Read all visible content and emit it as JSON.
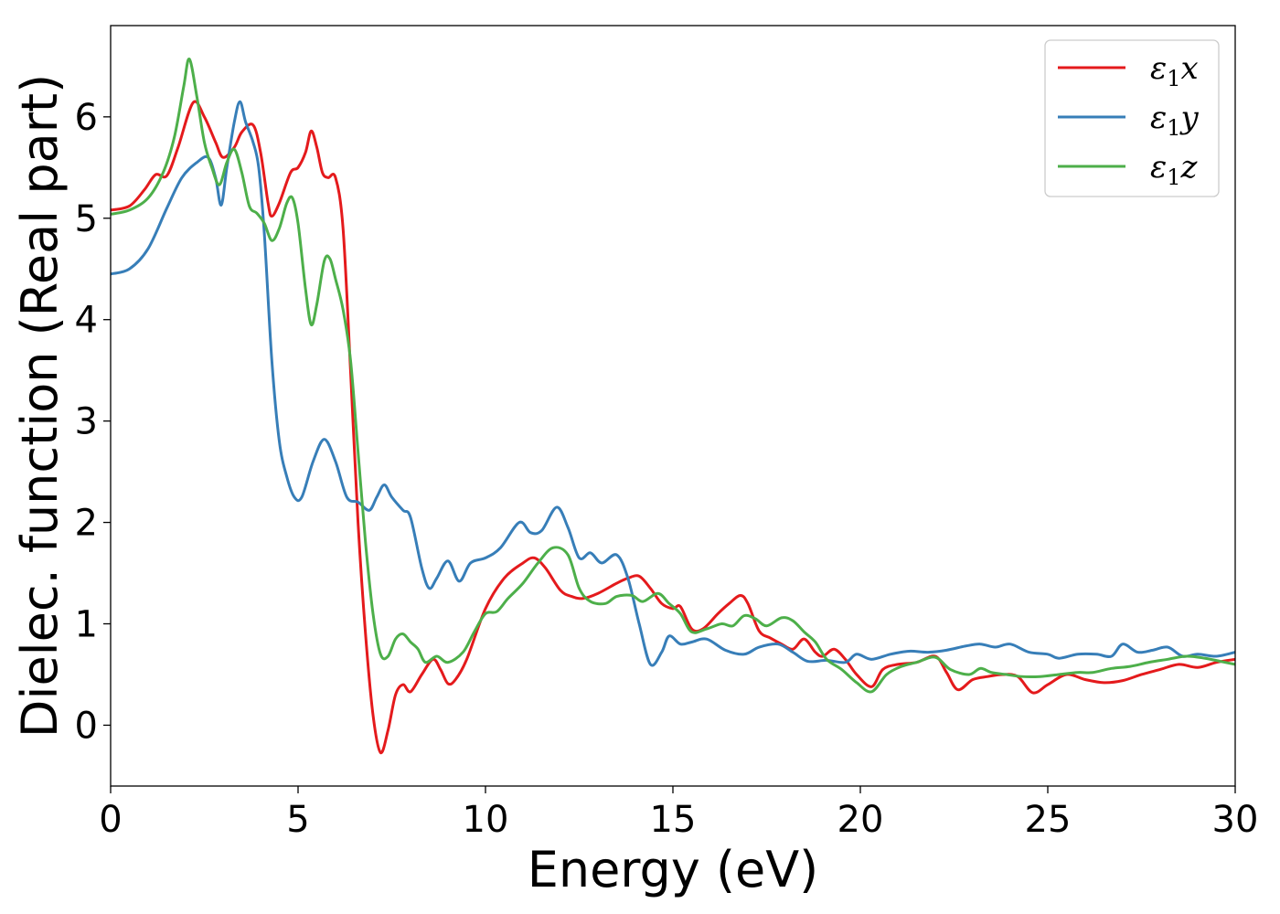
{
  "chart_data": {
    "type": "line",
    "title": "",
    "xlabel": "Energy (eV)",
    "ylabel": "Dielec. function (Real part)",
    "xlim": [
      0,
      30
    ],
    "ylim": [
      -0.6,
      6.9
    ],
    "xticks": [
      0,
      5,
      10,
      15,
      20,
      25,
      30
    ],
    "yticks": [
      0,
      1,
      2,
      3,
      4,
      5,
      6
    ],
    "grid": false,
    "legend_position": "top-right",
    "series": [
      {
        "name": "ε1x",
        "legend_main": "ε",
        "legend_sub": "1",
        "legend_tail": "x",
        "color": "#e41a1c",
        "points": [
          [
            0,
            5.08
          ],
          [
            0.5,
            5.12
          ],
          [
            0.9,
            5.28
          ],
          [
            1.2,
            5.43
          ],
          [
            1.5,
            5.42
          ],
          [
            1.8,
            5.7
          ],
          [
            2.2,
            6.14
          ],
          [
            2.5,
            6.0
          ],
          [
            2.8,
            5.75
          ],
          [
            3.0,
            5.6
          ],
          [
            3.3,
            5.7
          ],
          [
            3.5,
            5.85
          ],
          [
            3.8,
            5.92
          ],
          [
            4.0,
            5.65
          ],
          [
            4.2,
            5.15
          ],
          [
            4.3,
            5.02
          ],
          [
            4.5,
            5.15
          ],
          [
            4.8,
            5.45
          ],
          [
            5.0,
            5.5
          ],
          [
            5.2,
            5.65
          ],
          [
            5.35,
            5.86
          ],
          [
            5.5,
            5.7
          ],
          [
            5.65,
            5.45
          ],
          [
            5.8,
            5.4
          ],
          [
            6.0,
            5.4
          ],
          [
            6.2,
            4.9
          ],
          [
            6.4,
            3.5
          ],
          [
            6.6,
            2.0
          ],
          [
            6.8,
            0.9
          ],
          [
            7.0,
            0.1
          ],
          [
            7.2,
            -0.27
          ],
          [
            7.4,
            -0.05
          ],
          [
            7.6,
            0.3
          ],
          [
            7.8,
            0.4
          ],
          [
            8.0,
            0.33
          ],
          [
            8.3,
            0.5
          ],
          [
            8.6,
            0.65
          ],
          [
            8.8,
            0.55
          ],
          [
            9.0,
            0.41
          ],
          [
            9.2,
            0.45
          ],
          [
            9.5,
            0.65
          ],
          [
            10.0,
            1.15
          ],
          [
            10.5,
            1.45
          ],
          [
            11.0,
            1.6
          ],
          [
            11.3,
            1.65
          ],
          [
            11.6,
            1.55
          ],
          [
            12.0,
            1.33
          ],
          [
            12.3,
            1.27
          ],
          [
            12.6,
            1.25
          ],
          [
            13.0,
            1.3
          ],
          [
            13.5,
            1.4
          ],
          [
            13.8,
            1.45
          ],
          [
            14.1,
            1.47
          ],
          [
            14.4,
            1.35
          ],
          [
            14.7,
            1.2
          ],
          [
            15.0,
            1.15
          ],
          [
            15.2,
            1.17
          ],
          [
            15.5,
            0.95
          ],
          [
            15.8,
            0.95
          ],
          [
            16.2,
            1.1
          ],
          [
            16.5,
            1.2
          ],
          [
            16.8,
            1.28
          ],
          [
            17.0,
            1.2
          ],
          [
            17.3,
            0.93
          ],
          [
            17.6,
            0.86
          ],
          [
            17.9,
            0.8
          ],
          [
            18.2,
            0.75
          ],
          [
            18.5,
            0.85
          ],
          [
            18.8,
            0.72
          ],
          [
            19.0,
            0.68
          ],
          [
            19.3,
            0.75
          ],
          [
            19.6,
            0.65
          ],
          [
            19.9,
            0.5
          ],
          [
            20.3,
            0.38
          ],
          [
            20.6,
            0.55
          ],
          [
            21.0,
            0.6
          ],
          [
            21.5,
            0.62
          ],
          [
            22.0,
            0.68
          ],
          [
            22.3,
            0.52
          ],
          [
            22.6,
            0.35
          ],
          [
            23.0,
            0.45
          ],
          [
            23.4,
            0.48
          ],
          [
            23.8,
            0.5
          ],
          [
            24.2,
            0.48
          ],
          [
            24.6,
            0.32
          ],
          [
            25.0,
            0.4
          ],
          [
            25.5,
            0.5
          ],
          [
            26.0,
            0.45
          ],
          [
            26.5,
            0.42
          ],
          [
            27.0,
            0.44
          ],
          [
            27.5,
            0.5
          ],
          [
            28.0,
            0.55
          ],
          [
            28.5,
            0.6
          ],
          [
            29.0,
            0.57
          ],
          [
            29.5,
            0.62
          ],
          [
            30.0,
            0.65
          ]
        ]
      },
      {
        "name": "ε1y",
        "legend_main": "ε",
        "legend_sub": "1",
        "legend_tail": "y",
        "color": "#377eb8",
        "points": [
          [
            0,
            4.45
          ],
          [
            0.5,
            4.5
          ],
          [
            1.0,
            4.7
          ],
          [
            1.5,
            5.1
          ],
          [
            1.9,
            5.4
          ],
          [
            2.3,
            5.55
          ],
          [
            2.6,
            5.6
          ],
          [
            2.8,
            5.4
          ],
          [
            2.95,
            5.13
          ],
          [
            3.1,
            5.5
          ],
          [
            3.3,
            5.95
          ],
          [
            3.45,
            6.15
          ],
          [
            3.6,
            5.95
          ],
          [
            3.8,
            5.75
          ],
          [
            3.95,
            5.5
          ],
          [
            4.1,
            4.85
          ],
          [
            4.3,
            3.6
          ],
          [
            4.5,
            2.8
          ],
          [
            4.7,
            2.45
          ],
          [
            4.9,
            2.25
          ],
          [
            5.1,
            2.25
          ],
          [
            5.4,
            2.6
          ],
          [
            5.7,
            2.82
          ],
          [
            6.0,
            2.6
          ],
          [
            6.3,
            2.25
          ],
          [
            6.6,
            2.2
          ],
          [
            6.9,
            2.12
          ],
          [
            7.1,
            2.25
          ],
          [
            7.3,
            2.37
          ],
          [
            7.5,
            2.25
          ],
          [
            7.8,
            2.12
          ],
          [
            8.0,
            2.05
          ],
          [
            8.3,
            1.55
          ],
          [
            8.5,
            1.35
          ],
          [
            8.7,
            1.45
          ],
          [
            9.0,
            1.62
          ],
          [
            9.3,
            1.42
          ],
          [
            9.6,
            1.6
          ],
          [
            10.0,
            1.65
          ],
          [
            10.4,
            1.75
          ],
          [
            10.9,
            2.0
          ],
          [
            11.2,
            1.9
          ],
          [
            11.5,
            1.92
          ],
          [
            11.9,
            2.15
          ],
          [
            12.2,
            1.95
          ],
          [
            12.5,
            1.65
          ],
          [
            12.8,
            1.7
          ],
          [
            13.1,
            1.6
          ],
          [
            13.5,
            1.68
          ],
          [
            13.8,
            1.45
          ],
          [
            14.1,
            1.0
          ],
          [
            14.4,
            0.6
          ],
          [
            14.7,
            0.72
          ],
          [
            14.9,
            0.88
          ],
          [
            15.2,
            0.8
          ],
          [
            15.5,
            0.82
          ],
          [
            15.9,
            0.85
          ],
          [
            16.4,
            0.74
          ],
          [
            16.9,
            0.7
          ],
          [
            17.3,
            0.77
          ],
          [
            17.8,
            0.8
          ],
          [
            18.2,
            0.72
          ],
          [
            18.6,
            0.63
          ],
          [
            19.1,
            0.64
          ],
          [
            19.6,
            0.62
          ],
          [
            19.9,
            0.7
          ],
          [
            20.3,
            0.65
          ],
          [
            20.8,
            0.7
          ],
          [
            21.3,
            0.73
          ],
          [
            21.8,
            0.72
          ],
          [
            22.3,
            0.74
          ],
          [
            22.8,
            0.78
          ],
          [
            23.2,
            0.8
          ],
          [
            23.6,
            0.77
          ],
          [
            24.0,
            0.8
          ],
          [
            24.5,
            0.72
          ],
          [
            25.0,
            0.7
          ],
          [
            25.3,
            0.66
          ],
          [
            25.8,
            0.7
          ],
          [
            26.3,
            0.7
          ],
          [
            26.7,
            0.68
          ],
          [
            27.0,
            0.8
          ],
          [
            27.4,
            0.72
          ],
          [
            27.8,
            0.74
          ],
          [
            28.2,
            0.77
          ],
          [
            28.6,
            0.68
          ],
          [
            29.0,
            0.7
          ],
          [
            29.5,
            0.68
          ],
          [
            30.0,
            0.72
          ]
        ]
      },
      {
        "name": "ε1z",
        "legend_main": "ε",
        "legend_sub": "1",
        "legend_tail": "z",
        "color": "#4daf4a",
        "points": [
          [
            0,
            5.04
          ],
          [
            0.5,
            5.08
          ],
          [
            1.0,
            5.2
          ],
          [
            1.4,
            5.45
          ],
          [
            1.7,
            5.8
          ],
          [
            1.95,
            6.3
          ],
          [
            2.1,
            6.57
          ],
          [
            2.3,
            6.2
          ],
          [
            2.5,
            5.75
          ],
          [
            2.7,
            5.5
          ],
          [
            2.9,
            5.33
          ],
          [
            3.1,
            5.55
          ],
          [
            3.3,
            5.68
          ],
          [
            3.5,
            5.45
          ],
          [
            3.7,
            5.12
          ],
          [
            3.9,
            5.05
          ],
          [
            4.1,
            4.95
          ],
          [
            4.3,
            4.78
          ],
          [
            4.5,
            4.9
          ],
          [
            4.7,
            5.15
          ],
          [
            4.85,
            5.2
          ],
          [
            5.0,
            4.95
          ],
          [
            5.2,
            4.3
          ],
          [
            5.35,
            3.95
          ],
          [
            5.5,
            4.15
          ],
          [
            5.7,
            4.58
          ],
          [
            5.85,
            4.6
          ],
          [
            6.0,
            4.4
          ],
          [
            6.2,
            4.1
          ],
          [
            6.4,
            3.6
          ],
          [
            6.6,
            2.7
          ],
          [
            6.8,
            1.8
          ],
          [
            7.0,
            1.1
          ],
          [
            7.2,
            0.7
          ],
          [
            7.4,
            0.68
          ],
          [
            7.6,
            0.85
          ],
          [
            7.8,
            0.9
          ],
          [
            8.0,
            0.82
          ],
          [
            8.2,
            0.75
          ],
          [
            8.4,
            0.62
          ],
          [
            8.7,
            0.68
          ],
          [
            9.0,
            0.62
          ],
          [
            9.4,
            0.72
          ],
          [
            9.7,
            0.92
          ],
          [
            10.0,
            1.1
          ],
          [
            10.3,
            1.12
          ],
          [
            10.6,
            1.25
          ],
          [
            11.0,
            1.4
          ],
          [
            11.4,
            1.6
          ],
          [
            11.8,
            1.75
          ],
          [
            12.2,
            1.68
          ],
          [
            12.5,
            1.35
          ],
          [
            12.8,
            1.22
          ],
          [
            13.2,
            1.2
          ],
          [
            13.5,
            1.27
          ],
          [
            13.9,
            1.28
          ],
          [
            14.2,
            1.22
          ],
          [
            14.6,
            1.3
          ],
          [
            14.9,
            1.2
          ],
          [
            15.2,
            1.1
          ],
          [
            15.5,
            0.92
          ],
          [
            15.9,
            0.95
          ],
          [
            16.3,
            1.0
          ],
          [
            16.6,
            0.98
          ],
          [
            16.9,
            1.08
          ],
          [
            17.2,
            1.05
          ],
          [
            17.5,
            0.98
          ],
          [
            17.9,
            1.06
          ],
          [
            18.2,
            1.03
          ],
          [
            18.5,
            0.92
          ],
          [
            18.8,
            0.82
          ],
          [
            19.1,
            0.65
          ],
          [
            19.5,
            0.55
          ],
          [
            19.9,
            0.42
          ],
          [
            20.3,
            0.33
          ],
          [
            20.7,
            0.5
          ],
          [
            21.1,
            0.58
          ],
          [
            21.5,
            0.62
          ],
          [
            22.0,
            0.67
          ],
          [
            22.4,
            0.55
          ],
          [
            22.9,
            0.5
          ],
          [
            23.2,
            0.56
          ],
          [
            23.5,
            0.52
          ],
          [
            23.9,
            0.5
          ],
          [
            24.3,
            0.48
          ],
          [
            24.8,
            0.48
          ],
          [
            25.3,
            0.5
          ],
          [
            25.8,
            0.52
          ],
          [
            26.2,
            0.52
          ],
          [
            26.7,
            0.56
          ],
          [
            27.2,
            0.58
          ],
          [
            27.7,
            0.62
          ],
          [
            28.2,
            0.65
          ],
          [
            28.7,
            0.68
          ],
          [
            29.2,
            0.66
          ],
          [
            29.6,
            0.63
          ],
          [
            30.0,
            0.6
          ]
        ]
      }
    ]
  }
}
